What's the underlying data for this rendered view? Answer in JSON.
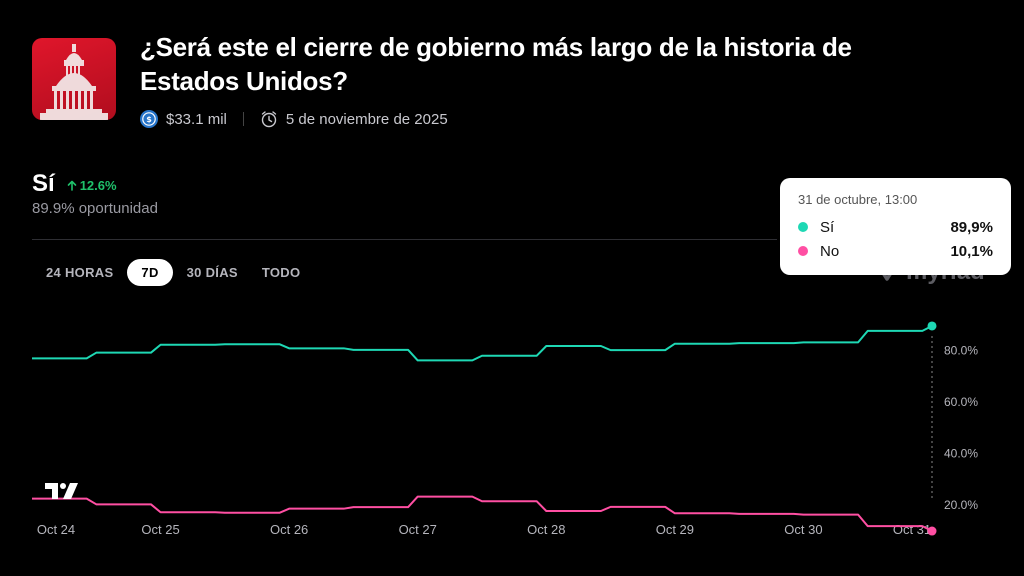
{
  "market": {
    "title": "¿Será este el cierre de gobierno más largo de la historia de Estados Unidos?",
    "volume": "$33.1 mil",
    "end_date": "5 de noviembre de 2025"
  },
  "outcome": {
    "name": "Sí",
    "change": "12.6%",
    "chance": "89.9% oportunidad"
  },
  "tabs": [
    {
      "label": "24 HORAS",
      "active": false
    },
    {
      "label": "7D",
      "active": true
    },
    {
      "label": "30 DÍAS",
      "active": false
    },
    {
      "label": "TODO",
      "active": false
    }
  ],
  "watermark": "myriad",
  "tooltip": {
    "date": "31 de octubre, 13:00",
    "rows": [
      {
        "label": "Sí",
        "value": "89,9%",
        "color": "#1ed8b4"
      },
      {
        "label": "No",
        "value": "10,1%",
        "color": "#ff4fa3"
      }
    ]
  },
  "chart_data": {
    "type": "line",
    "x": [
      "Oct 24",
      "Oct 24.5",
      "Oct 25",
      "Oct 25.5",
      "Oct 26",
      "Oct 26.5",
      "Oct 27",
      "Oct 27.5",
      "Oct 28",
      "Oct 28.5",
      "Oct 29",
      "Oct 29.5",
      "Oct 30",
      "Oct 30.5",
      "Oct 31"
    ],
    "xticks": [
      "Oct 24",
      "Oct 25",
      "Oct 26",
      "Oct 27",
      "Oct 28",
      "Oct 29",
      "Oct 30",
      "Oct 31"
    ],
    "yticks": [
      "20.0%",
      "40.0%",
      "60.0%",
      "80.0%"
    ],
    "ylim": [
      0,
      100
    ],
    "series": [
      {
        "name": "Sí",
        "color": "#1ed8b4",
        "values": [
          77.3,
          79.5,
          82.6,
          82.8,
          81.2,
          80.6,
          76.5,
          78.3,
          82.1,
          80.5,
          83.0,
          83.2,
          83.5,
          88.0,
          89.9
        ]
      },
      {
        "name": "No",
        "color": "#ff4fa3",
        "values": [
          22.7,
          20.5,
          17.4,
          17.2,
          18.8,
          19.4,
          23.5,
          21.7,
          17.9,
          19.5,
          17.0,
          16.8,
          16.5,
          12.0,
          10.1
        ]
      }
    ]
  }
}
